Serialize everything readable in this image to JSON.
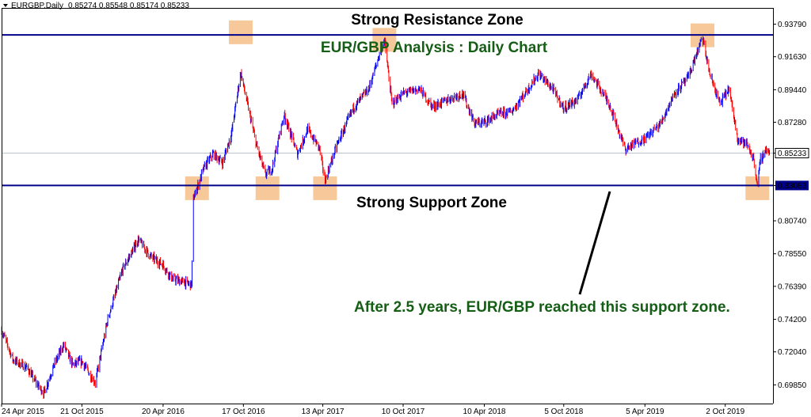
{
  "header": {
    "symbol_label": "EURGBP,Daily",
    "ohlc_text": "0.85274 0.85548 0.85174 0.85233"
  },
  "chart_data": {
    "type": "candlestick",
    "symbol": "EURGBP",
    "timeframe": "Daily",
    "ylim": [
      0.6861,
      0.9487
    ],
    "y_ticks": [
      "0.93790",
      "0.91630",
      "0.89440",
      "0.87280",
      "0.85233",
      "0.83083",
      "0.80740",
      "0.78550",
      "0.76390",
      "0.74200",
      "0.72040",
      "0.69850"
    ],
    "x_ticks": [
      "24 Apr 2015",
      "21 Oct 2015",
      "20 Apr 2016",
      "17 Oct 2016",
      "13 Apr 2017",
      "10 Oct 2017",
      "10 Apr 2018",
      "5 Oct 2018",
      "5 Apr 2019",
      "2 Oct 2019"
    ],
    "current_price": 0.85233,
    "resistance_level": 0.93078,
    "support_level": 0.83083,
    "price_path": [
      {
        "d": "2015-04-24",
        "v": 0.735
      },
      {
        "d": "2015-05-20",
        "v": 0.715
      },
      {
        "d": "2015-06-20",
        "v": 0.71
      },
      {
        "d": "2015-07-10",
        "v": 0.7
      },
      {
        "d": "2015-07-28",
        "v": 0.693
      },
      {
        "d": "2015-08-20",
        "v": 0.712
      },
      {
        "d": "2015-09-10",
        "v": 0.725
      },
      {
        "d": "2015-09-30",
        "v": 0.712
      },
      {
        "d": "2015-10-21",
        "v": 0.714
      },
      {
        "d": "2015-11-20",
        "v": 0.7
      },
      {
        "d": "2015-12-18",
        "v": 0.742
      },
      {
        "d": "2016-01-20",
        "v": 0.775
      },
      {
        "d": "2016-02-25",
        "v": 0.795
      },
      {
        "d": "2016-03-22",
        "v": 0.784
      },
      {
        "d": "2016-04-20",
        "v": 0.778
      },
      {
        "d": "2016-05-10",
        "v": 0.769
      },
      {
        "d": "2016-06-23",
        "v": 0.765
      },
      {
        "d": "2016-06-27",
        "v": 0.822
      },
      {
        "d": "2016-07-20",
        "v": 0.842
      },
      {
        "d": "2016-08-10",
        "v": 0.852
      },
      {
        "d": "2016-08-31",
        "v": 0.846
      },
      {
        "d": "2016-09-20",
        "v": 0.865
      },
      {
        "d": "2016-10-11",
        "v": 0.906
      },
      {
        "d": "2016-10-20",
        "v": 0.893
      },
      {
        "d": "2016-11-15",
        "v": 0.858
      },
      {
        "d": "2016-12-05",
        "v": 0.838
      },
      {
        "d": "2016-12-20",
        "v": 0.842
      },
      {
        "d": "2017-01-16",
        "v": 0.878
      },
      {
        "d": "2017-02-15",
        "v": 0.852
      },
      {
        "d": "2017-03-10",
        "v": 0.868
      },
      {
        "d": "2017-04-05",
        "v": 0.856
      },
      {
        "d": "2017-04-18",
        "v": 0.834
      },
      {
        "d": "2017-05-15",
        "v": 0.858
      },
      {
        "d": "2017-06-20",
        "v": 0.882
      },
      {
        "d": "2017-07-25",
        "v": 0.895
      },
      {
        "d": "2017-08-29",
        "v": 0.928
      },
      {
        "d": "2017-09-15",
        "v": 0.885
      },
      {
        "d": "2017-10-10",
        "v": 0.892
      },
      {
        "d": "2017-11-15",
        "v": 0.895
      },
      {
        "d": "2017-12-15",
        "v": 0.883
      },
      {
        "d": "2018-01-20",
        "v": 0.888
      },
      {
        "d": "2018-02-20",
        "v": 0.892
      },
      {
        "d": "2018-03-20",
        "v": 0.872
      },
      {
        "d": "2018-04-10",
        "v": 0.873
      },
      {
        "d": "2018-05-10",
        "v": 0.878
      },
      {
        "d": "2018-06-10",
        "v": 0.88
      },
      {
        "d": "2018-07-10",
        "v": 0.892
      },
      {
        "d": "2018-08-10",
        "v": 0.905
      },
      {
        "d": "2018-09-10",
        "v": 0.895
      },
      {
        "d": "2018-10-05",
        "v": 0.882
      },
      {
        "d": "2018-11-05",
        "v": 0.888
      },
      {
        "d": "2018-12-05",
        "v": 0.905
      },
      {
        "d": "2019-01-15",
        "v": 0.885
      },
      {
        "d": "2019-02-20",
        "v": 0.855
      },
      {
        "d": "2019-03-20",
        "v": 0.86
      },
      {
        "d": "2019-04-05",
        "v": 0.862
      },
      {
        "d": "2019-05-10",
        "v": 0.872
      },
      {
        "d": "2019-06-10",
        "v": 0.892
      },
      {
        "d": "2019-07-10",
        "v": 0.902
      },
      {
        "d": "2019-08-12",
        "v": 0.929
      },
      {
        "d": "2019-08-28",
        "v": 0.905
      },
      {
        "d": "2019-09-20",
        "v": 0.885
      },
      {
        "d": "2019-10-10",
        "v": 0.895
      },
      {
        "d": "2019-10-30",
        "v": 0.862
      },
      {
        "d": "2019-11-20",
        "v": 0.858
      },
      {
        "d": "2019-12-05",
        "v": 0.848
      },
      {
        "d": "2019-12-13",
        "v": 0.831
      },
      {
        "d": "2019-12-20",
        "v": 0.848
      },
      {
        "d": "2020-01-02",
        "v": 0.855
      },
      {
        "d": "2020-01-10",
        "v": 0.852
      }
    ],
    "highlights": [
      {
        "kind": "resistance",
        "date": "2016-10-11",
        "price": 0.9325
      },
      {
        "kind": "resistance",
        "date": "2017-08-29",
        "price": 0.9275
      },
      {
        "kind": "resistance",
        "date": "2019-08-12",
        "price": 0.9305
      },
      {
        "kind": "support",
        "date": "2016-07-05",
        "price": 0.829
      },
      {
        "kind": "support",
        "date": "2016-12-10",
        "price": 0.829
      },
      {
        "kind": "support",
        "date": "2017-04-18",
        "price": 0.829
      },
      {
        "kind": "support",
        "date": "2019-12-13",
        "price": 0.829
      }
    ],
    "annotations": {
      "resistance_zone": "Strong Resistance Zone",
      "title": "EUR/GBP Analysis : Daily Chart",
      "support_zone": "Strong Support Zone",
      "note": "After 2.5 years, EUR/GBP reached this support zone."
    },
    "colors": {
      "level_line": "#00008b",
      "highlight": "#f7c99a",
      "bull": "#0000ff",
      "bear": "#ff0000",
      "annotation_green": "#155e15",
      "annotation_dark": "#000000"
    }
  }
}
